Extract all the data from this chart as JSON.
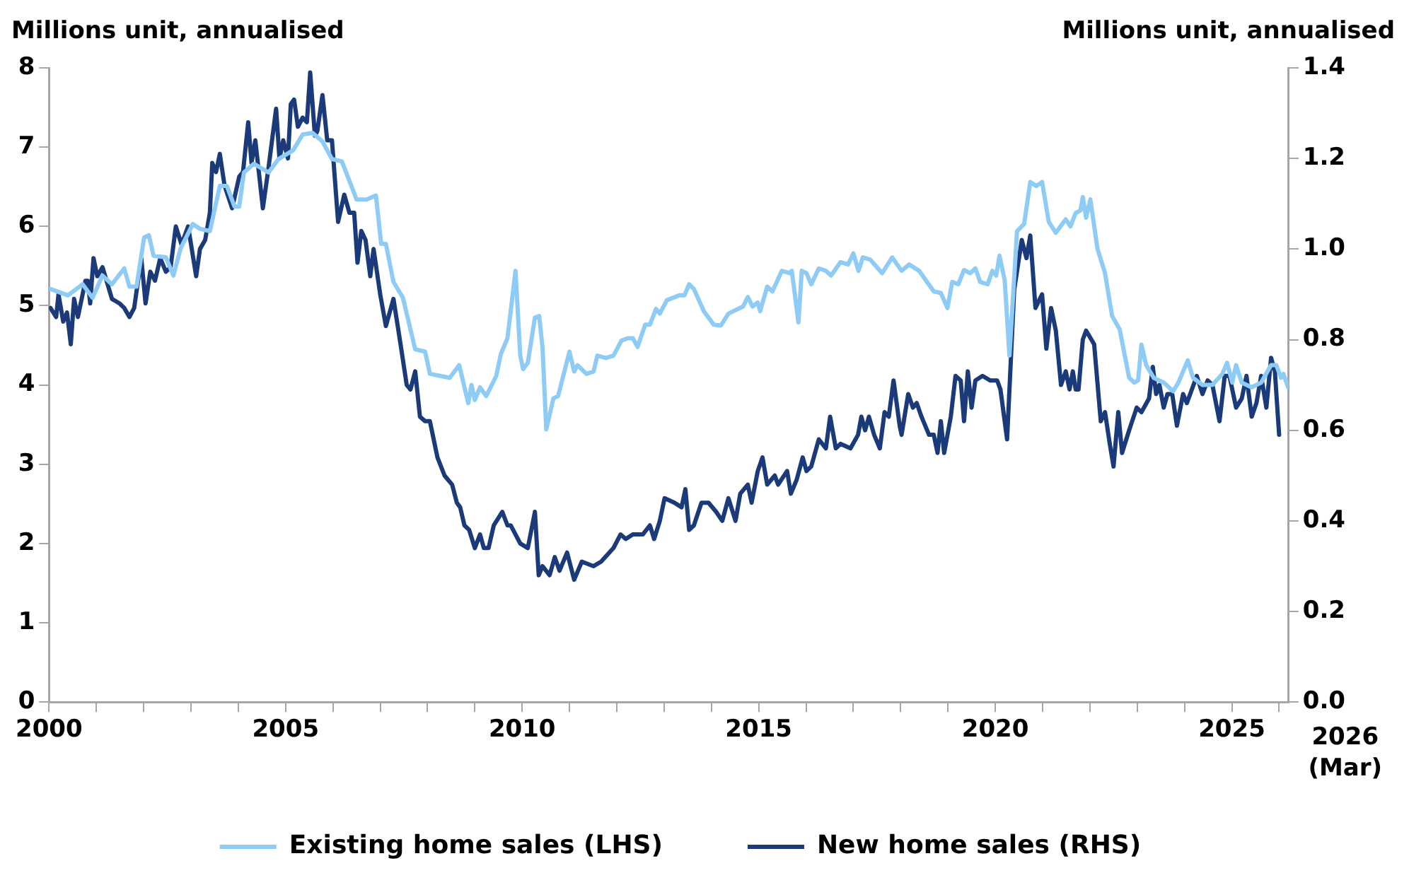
{
  "chart_data": {
    "type": "line",
    "ylabel": "Millions unit, annualised",
    "y2label": "Millions unit, annualised",
    "xlim": [
      2000,
      2026.2
    ],
    "xticks": [
      2000,
      {
        "value": 2001,
        "label": null
      },
      {
        "value": 2002,
        "label": null
      },
      {
        "value": 2003,
        "label": null
      },
      {
        "value": 2004,
        "label": null
      },
      2005,
      {
        "value": 2006,
        "label": null
      },
      {
        "value": 2007,
        "label": null
      },
      {
        "value": 2008,
        "label": null
      },
      {
        "value": 2009,
        "label": null
      },
      2010,
      {
        "value": 2011,
        "label": null
      },
      {
        "value": 2012,
        "label": null
      },
      {
        "value": 2013,
        "label": null
      },
      {
        "value": 2014,
        "label": null
      },
      2015,
      {
        "value": 2016,
        "label": null
      },
      {
        "value": 2017,
        "label": null
      },
      {
        "value": 2018,
        "label": null
      },
      {
        "value": 2019,
        "label": null
      },
      2020,
      {
        "value": 2021,
        "label": null
      },
      {
        "value": 2022,
        "label": null
      },
      {
        "value": 2023,
        "label": null
      },
      {
        "value": 2024,
        "label": null
      },
      2025,
      {
        "value": 2026,
        "label": null
      }
    ],
    "ylim": [
      0,
      8
    ],
    "yticks": [
      0,
      1,
      2,
      3,
      4,
      5,
      6,
      7,
      8
    ],
    "y2lim": [
      0,
      1.4
    ],
    "y2ticks": [
      {
        "value": 0,
        "label": "0.0"
      },
      {
        "value": 0.2,
        "label": "0.2"
      },
      {
        "value": 0.4,
        "label": "0.4"
      },
      {
        "value": 0.6,
        "label": "0.6"
      },
      {
        "value": 0.8,
        "label": "0.8"
      },
      {
        "value": 1,
        "label": "1.0"
      },
      {
        "value": 1.2,
        "label": "1.2"
      },
      {
        "value": 1.4,
        "label": "1.4"
      }
    ],
    "grid": false,
    "legend": "bottom",
    "marker": "none",
    "line_style": "solid",
    "annotations": [
      "2026 (Mar)"
    ],
    "series": [
      {
        "name": "Existing home sales (LHS)",
        "color": "#8ecbf5",
        "x": [
          2000.03,
          2000.4,
          2000.71,
          2000.92,
          2001.13,
          2001.33,
          2001.59,
          2001.7,
          2001.85,
          2002.01,
          2002.11,
          2002.21,
          2002.47,
          2002.63,
          2002.78,
          2003.04,
          2003.19,
          2003.4,
          2003.61,
          2003.76,
          2003.92,
          2004.02,
          2004.12,
          2004.33,
          2004.64,
          2004.85,
          2005.16,
          2005.36,
          2005.57,
          2005.78,
          2005.98,
          2006.19,
          2006.5,
          2006.71,
          2006.91,
          2007.02,
          2007.12,
          2007.28,
          2007.48,
          2007.74,
          2007.95,
          2008.05,
          2008.47,
          2008.67,
          2008.86,
          2008.93,
          2009.0,
          2009.11,
          2009.24,
          2009.45,
          2009.55,
          2009.69,
          2009.86,
          2009.96,
          2010.02,
          2010.12,
          2010.27,
          2010.36,
          2010.43,
          2010.51,
          2010.66,
          2010.76,
          2011.0,
          2011.1,
          2011.17,
          2011.36,
          2011.51,
          2011.59,
          2011.77,
          2011.93,
          2012.1,
          2012.24,
          2012.34,
          2012.44,
          2012.6,
          2012.7,
          2012.83,
          2012.91,
          2013.06,
          2013.32,
          2013.43,
          2013.53,
          2013.63,
          2013.84,
          2014.05,
          2014.2,
          2014.36,
          2014.67,
          2014.77,
          2014.87,
          2014.98,
          2015.03,
          2015.18,
          2015.29,
          2015.49,
          2015.65,
          2015.7,
          2015.84,
          2015.91,
          2016.01,
          2016.11,
          2016.27,
          2016.42,
          2016.53,
          2016.73,
          2016.89,
          2017.0,
          2017.11,
          2017.2,
          2017.36,
          2017.61,
          2017.82,
          2018.02,
          2018.18,
          2018.39,
          2018.7,
          2018.85,
          2018.99,
          2019.09,
          2019.22,
          2019.34,
          2019.47,
          2019.58,
          2019.68,
          2019.84,
          2019.94,
          2020.02,
          2020.09,
          2020.2,
          2020.3,
          2020.46,
          2020.61,
          2020.74,
          2020.87,
          2020.99,
          2021.13,
          2021.28,
          2021.49,
          2021.59,
          2021.7,
          2021.8,
          2021.85,
          2021.92,
          2022.01,
          2022.16,
          2022.32,
          2022.47,
          2022.63,
          2022.83,
          2022.94,
          2023.02,
          2023.09,
          2023.19,
          2023.35,
          2023.56,
          2023.76,
          2023.87,
          2024.07,
          2024.18,
          2024.38,
          2024.59,
          2024.8,
          2024.9,
          2025.01,
          2025.09,
          2025.21,
          2025.42,
          2025.62,
          2025.83,
          2025.94,
          2026.04,
          2026.09,
          2026.19
        ],
        "values": [
          5.21,
          5.13,
          5.27,
          5.1,
          5.38,
          5.27,
          5.47,
          5.24,
          5.24,
          5.86,
          5.89,
          5.63,
          5.61,
          5.38,
          5.72,
          6.03,
          5.97,
          5.94,
          6.51,
          6.51,
          6.25,
          6.25,
          6.68,
          6.79,
          6.68,
          6.85,
          6.96,
          7.16,
          7.18,
          7.07,
          6.85,
          6.82,
          6.34,
          6.34,
          6.39,
          5.78,
          5.78,
          5.3,
          5.1,
          4.45,
          4.42,
          4.14,
          4.09,
          4.25,
          3.77,
          4.0,
          3.81,
          3.97,
          3.86,
          4.11,
          4.39,
          4.59,
          5.44,
          4.37,
          4.2,
          4.28,
          4.85,
          4.87,
          4.48,
          3.44,
          3.83,
          3.86,
          4.42,
          4.17,
          4.25,
          4.14,
          4.17,
          4.37,
          4.34,
          4.37,
          4.56,
          4.59,
          4.59,
          4.48,
          4.76,
          4.76,
          4.96,
          4.9,
          5.07,
          5.13,
          5.13,
          5.27,
          5.21,
          4.93,
          4.76,
          4.75,
          4.9,
          4.99,
          5.11,
          4.99,
          5.04,
          4.93,
          5.24,
          5.18,
          5.44,
          5.41,
          5.44,
          4.79,
          5.44,
          5.41,
          5.27,
          5.47,
          5.44,
          5.38,
          5.55,
          5.52,
          5.66,
          5.44,
          5.61,
          5.58,
          5.41,
          5.61,
          5.44,
          5.52,
          5.44,
          5.18,
          5.16,
          4.97,
          5.3,
          5.27,
          5.45,
          5.41,
          5.47,
          5.3,
          5.27,
          5.44,
          5.38,
          5.63,
          5.32,
          4.37,
          5.94,
          6.03,
          6.56,
          6.51,
          6.56,
          6.06,
          5.92,
          6.09,
          6.0,
          6.17,
          6.2,
          6.37,
          6.11,
          6.34,
          5.72,
          5.41,
          4.87,
          4.7,
          4.09,
          4.03,
          4.06,
          4.51,
          4.25,
          4.09,
          4.03,
          3.92,
          4.03,
          4.31,
          4.09,
          4.0,
          4.0,
          4.14,
          4.28,
          4.03,
          4.25,
          4.03,
          3.97,
          4.03,
          4.25,
          4.25,
          4.09,
          4.14,
          3.97
        ]
      },
      {
        "name": "New home sales (RHS)",
        "color": "#1b3a7a",
        "axis": "y2",
        "x": [
          2000.03,
          2000.15,
          2000.2,
          2000.3,
          2000.38,
          2000.46,
          2000.53,
          2000.61,
          2000.77,
          2000.82,
          2000.87,
          2000.94,
          2001.02,
          2001.13,
          2001.33,
          2001.49,
          2001.59,
          2001.7,
          2001.8,
          2001.95,
          2002.04,
          2002.14,
          2002.24,
          2002.35,
          2002.47,
          2002.57,
          2002.68,
          2002.8,
          2002.94,
          2003.11,
          2003.19,
          2003.3,
          2003.4,
          2003.45,
          2003.53,
          2003.61,
          2003.71,
          2003.87,
          2004.02,
          2004.1,
          2004.21,
          2004.28,
          2004.36,
          2004.52,
          2004.64,
          2004.8,
          2004.87,
          2004.95,
          2005.05,
          2005.11,
          2005.18,
          2005.26,
          2005.36,
          2005.45,
          2005.52,
          2005.62,
          2005.67,
          2005.78,
          2005.88,
          2005.98,
          2006.11,
          2006.24,
          2006.35,
          2006.45,
          2006.52,
          2006.6,
          2006.69,
          2006.79,
          2006.86,
          2007.0,
          2007.12,
          2007.28,
          2007.43,
          2007.56,
          2007.64,
          2007.74,
          2007.84,
          2007.95,
          2008.05,
          2008.21,
          2008.36,
          2008.52,
          2008.62,
          2008.69,
          2008.78,
          2008.88,
          2009.0,
          2009.11,
          2009.19,
          2009.29,
          2009.4,
          2009.58,
          2009.69,
          2009.76,
          2009.96,
          2010.12,
          2010.27,
          2010.35,
          2010.43,
          2010.58,
          2010.69,
          2010.79,
          2010.95,
          2011.1,
          2011.26,
          2011.51,
          2011.67,
          2011.93,
          2012.08,
          2012.19,
          2012.34,
          2012.55,
          2012.7,
          2012.79,
          2012.91,
          2013.01,
          2013.22,
          2013.37,
          2013.45,
          2013.53,
          2013.63,
          2013.79,
          2013.94,
          2014.1,
          2014.23,
          2014.36,
          2014.51,
          2014.61,
          2014.77,
          2014.85,
          2014.98,
          2015.08,
          2015.18,
          2015.34,
          2015.41,
          2015.6,
          2015.68,
          2015.8,
          2015.93,
          2016.01,
          2016.11,
          2016.27,
          2016.42,
          2016.51,
          2016.63,
          2016.73,
          2016.94,
          2017.1,
          2017.17,
          2017.25,
          2017.33,
          2017.44,
          2017.56,
          2017.66,
          2017.75,
          2017.85,
          2017.98,
          2018.02,
          2018.16,
          2018.26,
          2018.34,
          2018.44,
          2018.6,
          2018.7,
          2018.78,
          2018.85,
          2018.92,
          2019.06,
          2019.16,
          2019.27,
          2019.34,
          2019.42,
          2019.5,
          2019.58,
          2019.73,
          2019.89,
          2020.04,
          2020.11,
          2020.25,
          2020.4,
          2020.56,
          2020.66,
          2020.74,
          2020.85,
          2020.99,
          2021.08,
          2021.18,
          2021.28,
          2021.39,
          2021.49,
          2021.57,
          2021.64,
          2021.7,
          2021.76,
          2021.85,
          2021.92,
          2022.09,
          2022.23,
          2022.32,
          2022.42,
          2022.5,
          2022.6,
          2022.68,
          2022.83,
          2022.99,
          2023.09,
          2023.25,
          2023.33,
          2023.4,
          2023.47,
          2023.56,
          2023.64,
          2023.74,
          2023.84,
          2023.97,
          2024.05,
          2024.26,
          2024.38,
          2024.49,
          2024.59,
          2024.74,
          2024.85,
          2024.95,
          2025.09,
          2025.21,
          2025.31,
          2025.42,
          2025.52,
          2025.62,
          2025.73,
          2025.83,
          2025.91,
          2026.0
        ],
        "values": [
          0.87,
          0.85,
          0.9,
          0.84,
          0.86,
          0.79,
          0.89,
          0.85,
          0.93,
          0.93,
          0.88,
          0.98,
          0.94,
          0.96,
          0.89,
          0.88,
          0.87,
          0.85,
          0.87,
          0.98,
          0.88,
          0.95,
          0.93,
          0.98,
          0.95,
          0.96,
          1.05,
          1.01,
          1.05,
          0.94,
          1.0,
          1.02,
          1.08,
          1.19,
          1.17,
          1.21,
          1.14,
          1.09,
          1.16,
          1.17,
          1.28,
          1.19,
          1.24,
          1.09,
          1.18,
          1.31,
          1.2,
          1.24,
          1.2,
          1.32,
          1.33,
          1.27,
          1.29,
          1.28,
          1.39,
          1.25,
          1.26,
          1.34,
          1.24,
          1.24,
          1.06,
          1.12,
          1.08,
          1.08,
          0.97,
          1.04,
          1.02,
          0.94,
          1.0,
          0.9,
          0.83,
          0.89,
          0.79,
          0.7,
          0.69,
          0.73,
          0.63,
          0.62,
          0.62,
          0.54,
          0.5,
          0.48,
          0.44,
          0.43,
          0.39,
          0.38,
          0.34,
          0.37,
          0.34,
          0.34,
          0.39,
          0.42,
          0.39,
          0.39,
          0.35,
          0.34,
          0.42,
          0.28,
          0.3,
          0.28,
          0.32,
          0.29,
          0.33,
          0.27,
          0.31,
          0.3,
          0.31,
          0.34,
          0.37,
          0.36,
          0.37,
          0.37,
          0.39,
          0.36,
          0.4,
          0.45,
          0.44,
          0.43,
          0.47,
          0.38,
          0.39,
          0.44,
          0.44,
          0.42,
          0.4,
          0.45,
          0.4,
          0.46,
          0.48,
          0.44,
          0.51,
          0.54,
          0.48,
          0.5,
          0.48,
          0.51,
          0.46,
          0.49,
          0.54,
          0.51,
          0.52,
          0.58,
          0.56,
          0.63,
          0.56,
          0.57,
          0.56,
          0.59,
          0.63,
          0.6,
          0.63,
          0.59,
          0.56,
          0.64,
          0.63,
          0.71,
          0.61,
          0.59,
          0.68,
          0.65,
          0.66,
          0.63,
          0.59,
          0.59,
          0.55,
          0.62,
          0.55,
          0.63,
          0.72,
          0.71,
          0.62,
          0.73,
          0.65,
          0.71,
          0.72,
          0.71,
          0.71,
          0.69,
          0.58,
          0.91,
          1.02,
          0.98,
          1.03,
          0.87,
          0.9,
          0.78,
          0.87,
          0.82,
          0.7,
          0.73,
          0.69,
          0.73,
          0.69,
          0.69,
          0.8,
          0.82,
          0.79,
          0.62,
          0.64,
          0.57,
          0.52,
          0.64,
          0.55,
          0.6,
          0.65,
          0.64,
          0.67,
          0.74,
          0.68,
          0.7,
          0.65,
          0.68,
          0.68,
          0.61,
          0.68,
          0.66,
          0.72,
          0.68,
          0.71,
          0.7,
          0.62,
          0.72,
          0.72,
          0.65,
          0.67,
          0.72,
          0.63,
          0.66,
          0.72,
          0.65,
          0.76,
          0.73,
          0.59
        ]
      }
    ]
  }
}
